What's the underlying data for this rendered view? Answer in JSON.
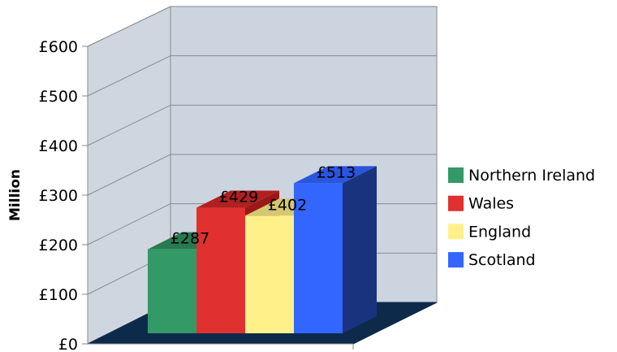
{
  "chart_data": {
    "type": "bar",
    "categories": [
      "Northern Ireland",
      "Wales",
      "England",
      "Scotland"
    ],
    "values": [
      287,
      429,
      402,
      513
    ],
    "data_labels": [
      "£287",
      "£429",
      "£402",
      "£513"
    ],
    "title": "",
    "xlabel": "",
    "ylabel": "Million",
    "ylim": [
      0,
      600
    ],
    "y_ticks": [
      "£0",
      "£100",
      "£200",
      "£300",
      "£400",
      "£500",
      "£600"
    ],
    "y_tick_values": [
      0,
      100,
      200,
      300,
      400,
      500,
      600
    ],
    "legend": {
      "position": "right",
      "entries": [
        "Northern Ireland",
        "Wales",
        "England",
        "Scotland"
      ]
    },
    "colors": {
      "front": [
        "#339966",
        "#e03030",
        "#fff08a",
        "#3366ff"
      ],
      "top": [
        "#267a4f",
        "#b02020",
        "#d4c870",
        "#2a55dd"
      ],
      "side": [
        "#1f5e3c",
        "#9a1818",
        "#b8a85a",
        "#1a337f"
      ]
    },
    "grid": true,
    "style": "3d-clustered"
  }
}
